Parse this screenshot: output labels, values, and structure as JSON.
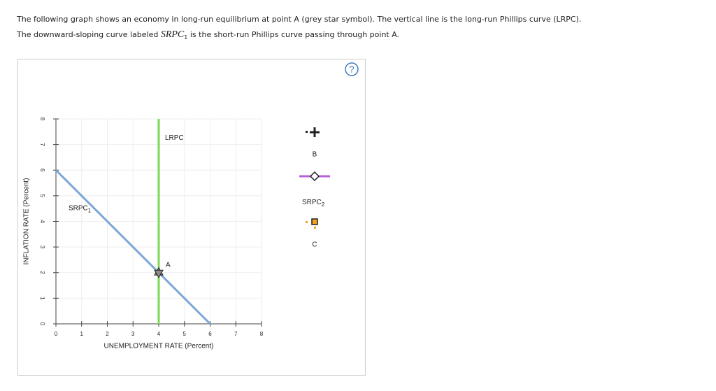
{
  "instructions": {
    "line1": "The following graph shows an economy in long-run equilibrium at point A (grey star symbol). The vertical line is the long-run Phillips curve (LRPC).",
    "line2": {
      "before": "The downward-sloping curve labeled ",
      "term": "SRPC",
      "term_sub": "1",
      "after": " is the short-run Phillips curve passing through point A."
    }
  },
  "help": "?",
  "chart_data": {
    "type": "line",
    "xlabel": "UNEMPLOYMENT RATE (Percent)",
    "ylabel": "INFLATION RATE (Percent)",
    "xlim": [
      0,
      8
    ],
    "ylim": [
      0,
      8
    ],
    "xticks": [
      0,
      1,
      2,
      3,
      4,
      5,
      6,
      7,
      8
    ],
    "yticks": [
      0,
      1,
      2,
      3,
      4,
      5,
      6,
      7,
      8
    ],
    "grid": true,
    "series": [
      {
        "name": "SRPC",
        "name_sub": "1",
        "color": "#7aa7d8",
        "x": [
          0,
          6
        ],
        "values": [
          6,
          0
        ]
      },
      {
        "name": "LRPC",
        "color": "#7ed957",
        "x": [
          4,
          4
        ],
        "values": [
          0,
          8
        ]
      }
    ],
    "points": [
      {
        "name": "A",
        "x": 4,
        "y": 2,
        "color": "#8c8c8c"
      }
    ]
  },
  "palette": [
    {
      "label": "B",
      "tool": "point"
    },
    {
      "label": "SRPC",
      "label_sub": "2",
      "tool": "line",
      "color": "#b562d8"
    },
    {
      "label": "C",
      "tool": "point",
      "color": "#f5a31a"
    }
  ]
}
